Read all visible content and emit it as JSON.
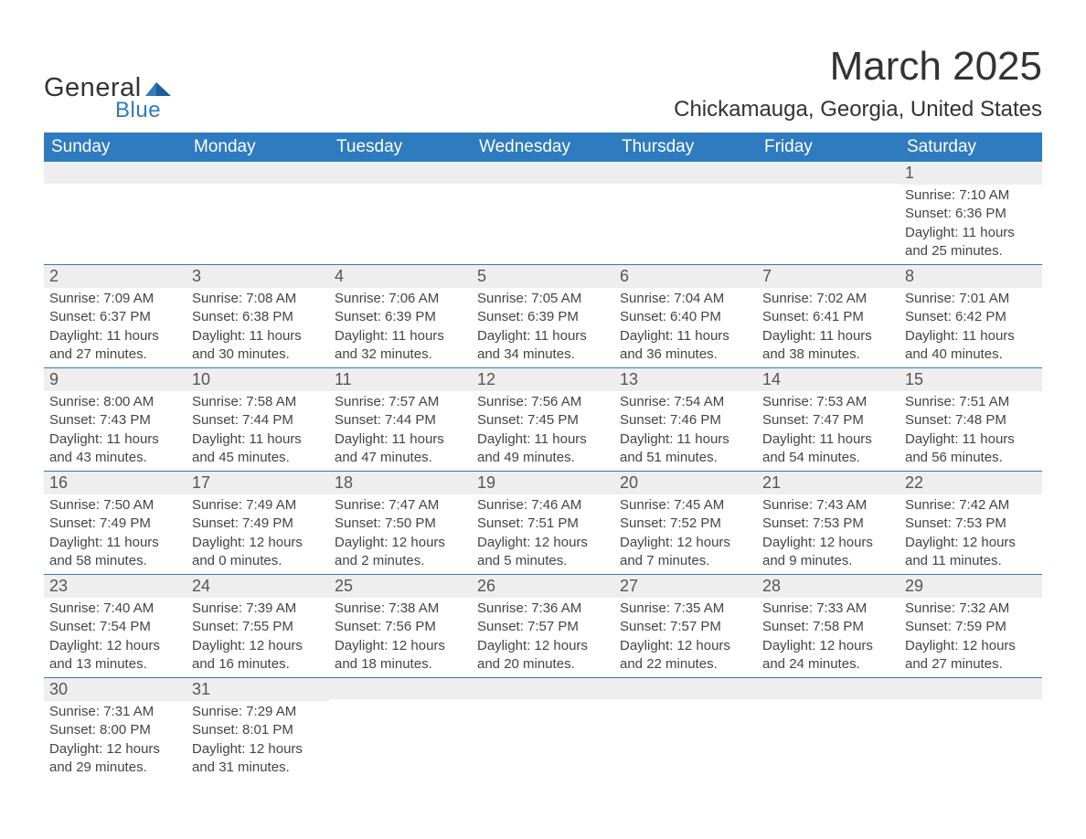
{
  "brand": {
    "name_top": "General",
    "name_bottom": "Blue",
    "accent_color": "#2f7bbf",
    "text_color": "#333333"
  },
  "header": {
    "month_title": "March 2025",
    "location": "Chickamauga, Georgia, United States"
  },
  "styling": {
    "header_bg": "#2f7bbf",
    "header_text": "#ffffff",
    "daynum_bg": "#eeeeee",
    "row_divider": "#2f7bbf",
    "body_text": "#444444",
    "page_bg": "#ffffff",
    "title_fontsize": 44,
    "location_fontsize": 24,
    "dayheader_fontsize": 19,
    "cell_fontsize": 15
  },
  "day_headers": [
    "Sunday",
    "Monday",
    "Tuesday",
    "Wednesday",
    "Thursday",
    "Friday",
    "Saturday"
  ],
  "labels": {
    "sunrise_prefix": "Sunrise: ",
    "sunset_prefix": "Sunset: ",
    "daylight_prefix": "Daylight: "
  },
  "weeks": [
    [
      {
        "empty": true
      },
      {
        "empty": true
      },
      {
        "empty": true
      },
      {
        "empty": true
      },
      {
        "empty": true
      },
      {
        "empty": true
      },
      {
        "day": "1",
        "sunrise": "7:10 AM",
        "sunset": "6:36 PM",
        "daylight": "11 hours and 25 minutes."
      }
    ],
    [
      {
        "day": "2",
        "sunrise": "7:09 AM",
        "sunset": "6:37 PM",
        "daylight": "11 hours and 27 minutes."
      },
      {
        "day": "3",
        "sunrise": "7:08 AM",
        "sunset": "6:38 PM",
        "daylight": "11 hours and 30 minutes."
      },
      {
        "day": "4",
        "sunrise": "7:06 AM",
        "sunset": "6:39 PM",
        "daylight": "11 hours and 32 minutes."
      },
      {
        "day": "5",
        "sunrise": "7:05 AM",
        "sunset": "6:39 PM",
        "daylight": "11 hours and 34 minutes."
      },
      {
        "day": "6",
        "sunrise": "7:04 AM",
        "sunset": "6:40 PM",
        "daylight": "11 hours and 36 minutes."
      },
      {
        "day": "7",
        "sunrise": "7:02 AM",
        "sunset": "6:41 PM",
        "daylight": "11 hours and 38 minutes."
      },
      {
        "day": "8",
        "sunrise": "7:01 AM",
        "sunset": "6:42 PM",
        "daylight": "11 hours and 40 minutes."
      }
    ],
    [
      {
        "day": "9",
        "sunrise": "8:00 AM",
        "sunset": "7:43 PM",
        "daylight": "11 hours and 43 minutes."
      },
      {
        "day": "10",
        "sunrise": "7:58 AM",
        "sunset": "7:44 PM",
        "daylight": "11 hours and 45 minutes."
      },
      {
        "day": "11",
        "sunrise": "7:57 AM",
        "sunset": "7:44 PM",
        "daylight": "11 hours and 47 minutes."
      },
      {
        "day": "12",
        "sunrise": "7:56 AM",
        "sunset": "7:45 PM",
        "daylight": "11 hours and 49 minutes."
      },
      {
        "day": "13",
        "sunrise": "7:54 AM",
        "sunset": "7:46 PM",
        "daylight": "11 hours and 51 minutes."
      },
      {
        "day": "14",
        "sunrise": "7:53 AM",
        "sunset": "7:47 PM",
        "daylight": "11 hours and 54 minutes."
      },
      {
        "day": "15",
        "sunrise": "7:51 AM",
        "sunset": "7:48 PM",
        "daylight": "11 hours and 56 minutes."
      }
    ],
    [
      {
        "day": "16",
        "sunrise": "7:50 AM",
        "sunset": "7:49 PM",
        "daylight": "11 hours and 58 minutes."
      },
      {
        "day": "17",
        "sunrise": "7:49 AM",
        "sunset": "7:49 PM",
        "daylight": "12 hours and 0 minutes."
      },
      {
        "day": "18",
        "sunrise": "7:47 AM",
        "sunset": "7:50 PM",
        "daylight": "12 hours and 2 minutes."
      },
      {
        "day": "19",
        "sunrise": "7:46 AM",
        "sunset": "7:51 PM",
        "daylight": "12 hours and 5 minutes."
      },
      {
        "day": "20",
        "sunrise": "7:45 AM",
        "sunset": "7:52 PM",
        "daylight": "12 hours and 7 minutes."
      },
      {
        "day": "21",
        "sunrise": "7:43 AM",
        "sunset": "7:53 PM",
        "daylight": "12 hours and 9 minutes."
      },
      {
        "day": "22",
        "sunrise": "7:42 AM",
        "sunset": "7:53 PM",
        "daylight": "12 hours and 11 minutes."
      }
    ],
    [
      {
        "day": "23",
        "sunrise": "7:40 AM",
        "sunset": "7:54 PM",
        "daylight": "12 hours and 13 minutes."
      },
      {
        "day": "24",
        "sunrise": "7:39 AM",
        "sunset": "7:55 PM",
        "daylight": "12 hours and 16 minutes."
      },
      {
        "day": "25",
        "sunrise": "7:38 AM",
        "sunset": "7:56 PM",
        "daylight": "12 hours and 18 minutes."
      },
      {
        "day": "26",
        "sunrise": "7:36 AM",
        "sunset": "7:57 PM",
        "daylight": "12 hours and 20 minutes."
      },
      {
        "day": "27",
        "sunrise": "7:35 AM",
        "sunset": "7:57 PM",
        "daylight": "12 hours and 22 minutes."
      },
      {
        "day": "28",
        "sunrise": "7:33 AM",
        "sunset": "7:58 PM",
        "daylight": "12 hours and 24 minutes."
      },
      {
        "day": "29",
        "sunrise": "7:32 AM",
        "sunset": "7:59 PM",
        "daylight": "12 hours and 27 minutes."
      }
    ],
    [
      {
        "day": "30",
        "sunrise": "7:31 AM",
        "sunset": "8:00 PM",
        "daylight": "12 hours and 29 minutes."
      },
      {
        "day": "31",
        "sunrise": "7:29 AM",
        "sunset": "8:01 PM",
        "daylight": "12 hours and 31 minutes."
      },
      {
        "empty": true
      },
      {
        "empty": true
      },
      {
        "empty": true
      },
      {
        "empty": true
      },
      {
        "empty": true
      }
    ]
  ]
}
